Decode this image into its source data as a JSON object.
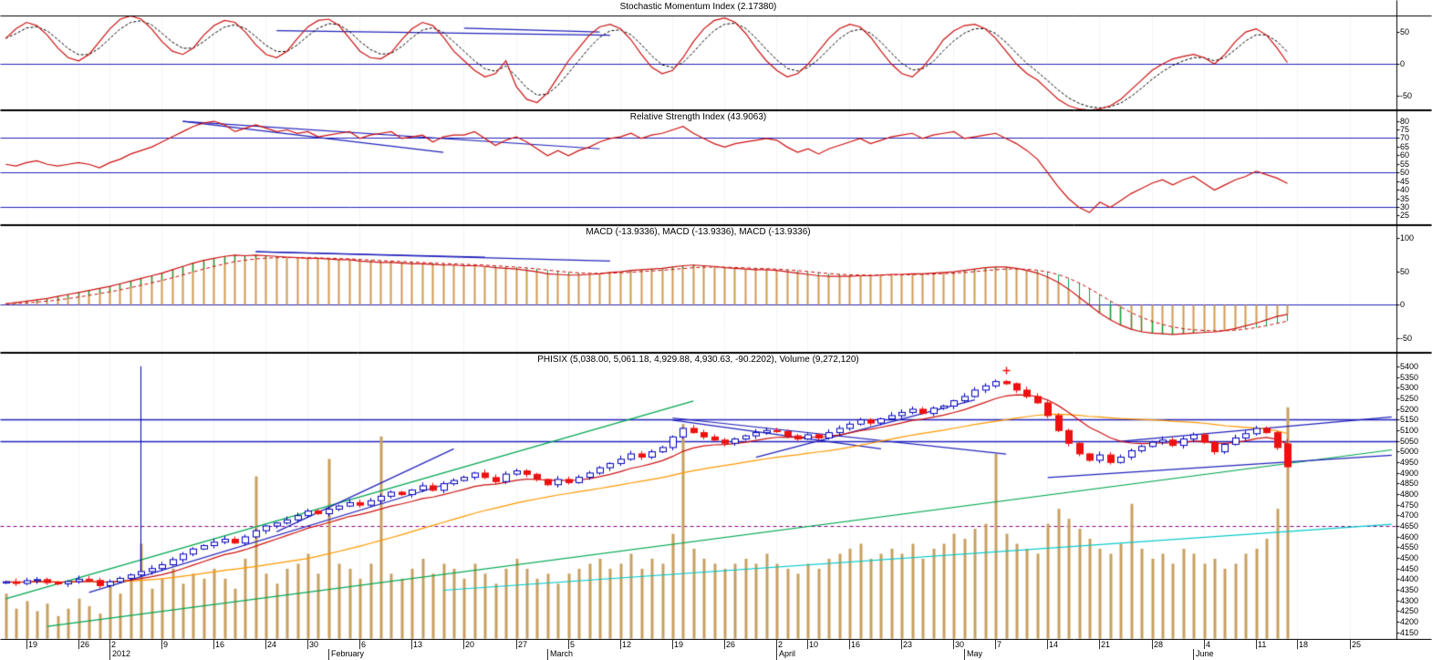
{
  "panels": {
    "smi": {
      "title": "Stochastic Momentum Index (2.17380)"
    },
    "rsi": {
      "title": "Relative Strength Index (43.9063)"
    },
    "macd": {
      "title": "MACD (-13.9336), MACD (-13.9336), MACD (-13.9336)"
    },
    "price": {
      "title": "PHISIX (5,038.00, 5,061.18, 4,929.88, 4,930.63, -90.2202), Volume (9,272,120)"
    }
  },
  "chart_data": {
    "type": "candlestick-with-indicators",
    "slots": 134,
    "xticks": [
      [
        2,
        "19"
      ],
      [
        7,
        "26"
      ],
      [
        10,
        "2"
      ],
      [
        15,
        "9"
      ],
      [
        20,
        "16"
      ],
      [
        25,
        "24"
      ],
      [
        29,
        "30"
      ],
      [
        34,
        "6"
      ],
      [
        39,
        "13"
      ],
      [
        44,
        "20"
      ],
      [
        49,
        "27"
      ],
      [
        54,
        "5"
      ],
      [
        59,
        "12"
      ],
      [
        64,
        "19"
      ],
      [
        69,
        "26"
      ],
      [
        74,
        "2"
      ],
      [
        77,
        "10"
      ],
      [
        81,
        "16"
      ],
      [
        86,
        "23"
      ],
      [
        91,
        "30"
      ],
      [
        95,
        "7"
      ],
      [
        100,
        "14"
      ],
      [
        105,
        "21"
      ],
      [
        110,
        "28"
      ],
      [
        115,
        "4"
      ],
      [
        120,
        "11"
      ],
      [
        124,
        "18"
      ],
      [
        129,
        "25"
      ]
    ],
    "months": [
      [
        10,
        "2012"
      ],
      [
        31,
        "February"
      ],
      [
        52,
        "March"
      ],
      [
        74,
        "April"
      ],
      [
        92,
        "May"
      ],
      [
        114,
        "June"
      ]
    ],
    "colors": {
      "red": "#cc1111",
      "blue": "#2222bb",
      "green": "#00a651",
      "cyan": "#00c8c8",
      "orange": "#ff9900",
      "tan": "#cf9b52",
      "purple": "#880088",
      "volume": "#c8a060",
      "candleUp": "#0000bb",
      "candleDown": "#ee1111",
      "grid": "#dcdcdc",
      "black": "#000000"
    },
    "smi": {
      "ymax": 75,
      "ymin": -70,
      "yticks": [
        50,
        0,
        -50
      ],
      "hlines": [
        0
      ],
      "trendlines": [
        [
          26,
          52,
          58,
          45
        ],
        [
          44,
          56,
          57,
          50
        ]
      ],
      "values": [
        40,
        55,
        65,
        60,
        45,
        25,
        10,
        5,
        15,
        35,
        55,
        70,
        75,
        70,
        55,
        35,
        20,
        15,
        25,
        45,
        60,
        68,
        65,
        50,
        30,
        15,
        10,
        20,
        40,
        58,
        68,
        70,
        60,
        40,
        20,
        10,
        8,
        18,
        38,
        55,
        65,
        60,
        42,
        20,
        5,
        -10,
        -20,
        -15,
        5,
        -35,
        -55,
        -60,
        -45,
        -20,
        5,
        25,
        45,
        58,
        62,
        55,
        38,
        15,
        -5,
        -15,
        -10,
        10,
        35,
        55,
        68,
        72,
        65,
        48,
        25,
        5,
        -10,
        -20,
        -15,
        0,
        20,
        40,
        55,
        62,
        58,
        42,
        20,
        0,
        -15,
        -20,
        -5,
        15,
        38,
        52,
        60,
        62,
        55,
        40,
        20,
        0,
        -15,
        -25,
        -40,
        -55,
        -65,
        -70,
        -72,
        -70,
        -65,
        -55,
        -40,
        -25,
        -10,
        0,
        8,
        12,
        15,
        10,
        0,
        15,
        35,
        50,
        55,
        45,
        25,
        2.17
      ]
    },
    "rsi": {
      "ymax": 84,
      "ymin": 21.5,
      "yticks": [
        80,
        75,
        70,
        65,
        60,
        55,
        50,
        45,
        40,
        35,
        30,
        25
      ],
      "hlines": [
        70,
        50,
        30
      ],
      "trendlines": [
        [
          17,
          80,
          57,
          64
        ],
        [
          17,
          80,
          42,
          62
        ]
      ],
      "values": [
        55,
        54,
        56,
        57,
        55,
        54,
        55,
        56,
        55,
        53,
        56,
        58,
        61,
        63,
        65,
        68,
        71,
        74,
        77,
        79,
        80,
        78,
        74,
        76,
        78,
        76,
        74,
        75,
        73,
        74,
        71,
        72,
        73,
        74,
        70,
        72,
        73,
        74,
        70,
        71,
        72,
        68,
        71,
        72,
        72,
        74,
        70,
        66,
        69,
        71,
        68,
        64,
        60,
        63,
        60,
        63,
        65,
        68,
        70,
        71,
        73,
        70,
        72,
        73,
        75,
        77,
        73,
        70,
        67,
        65,
        67,
        68,
        69,
        70,
        69,
        65,
        62,
        64,
        61,
        64,
        66,
        68,
        70,
        67,
        69,
        71,
        72,
        73,
        70,
        72,
        73,
        74,
        70,
        71,
        72,
        73,
        70,
        67,
        63,
        58,
        50,
        42,
        35,
        30,
        27,
        33,
        30,
        34,
        38,
        41,
        44,
        46,
        43,
        46,
        48,
        44,
        40,
        43,
        46,
        48,
        51,
        49,
        47,
        43.9
      ]
    },
    "macd": {
      "ymax": 115,
      "ymin": -68,
      "yticks": [
        100,
        50,
        0,
        -50
      ],
      "hlines": [
        0
      ],
      "trendlines": [
        [
          24,
          80,
          58,
          66
        ],
        [
          24,
          80,
          46,
          72
        ]
      ],
      "values": [
        2,
        4,
        6,
        8,
        10,
        13,
        16,
        19,
        22,
        25,
        28,
        32,
        36,
        40,
        44,
        48,
        53,
        58,
        63,
        67,
        70,
        73,
        75,
        74,
        75,
        74,
        73,
        72,
        71,
        70,
        70,
        69,
        68,
        68,
        66,
        65,
        64,
        64,
        63,
        62,
        62,
        61,
        60,
        60,
        59,
        59,
        58,
        56,
        55,
        54,
        52,
        50,
        47,
        46,
        45,
        45,
        46,
        47,
        49,
        50,
        52,
        53,
        54,
        55,
        57,
        59,
        60,
        59,
        58,
        56,
        55,
        54,
        53,
        53,
        52,
        50,
        48,
        46,
        44,
        43,
        43,
        43,
        44,
        44,
        45,
        46,
        46,
        47,
        47,
        48,
        49,
        50,
        52,
        54,
        56,
        57,
        57,
        55,
        52,
        48,
        42,
        34,
        24,
        12,
        0,
        -12,
        -22,
        -30,
        -36,
        -40,
        -42,
        -43,
        -44,
        -43,
        -42,
        -41,
        -40,
        -38,
        -35,
        -31,
        -27,
        -22,
        -17,
        -13.9
      ]
    },
    "price": {
      "ymax": 5430,
      "ymin": 4140,
      "yticks": [
        5400,
        5350,
        5300,
        5250,
        5200,
        5150,
        5100,
        5050,
        5000,
        4950,
        4900,
        4850,
        4800,
        4750,
        4700,
        4650,
        4600,
        4550,
        4500,
        4450,
        4400,
        4350,
        4300,
        4250,
        4200,
        4150
      ],
      "hlines_blue": [
        5150,
        5050
      ],
      "hlines_purple": [
        4650
      ],
      "spike": {
        "slot": 13,
        "high": 5403
      },
      "last_candle": {
        "open": 5038.0,
        "high": 5061.18,
        "low": 4929.88,
        "close": 4930.63,
        "change": -90.2202
      },
      "markers": [
        {
          "slot": 96,
          "value": 5385,
          "type": "plus",
          "color": "#ee1111"
        }
      ],
      "trendlines": [
        [
          0,
          4310,
          66,
          5240,
          "green"
        ],
        [
          4,
          4180,
          133,
          5010,
          "green"
        ],
        [
          42,
          4350,
          133,
          4660,
          "cyan"
        ],
        [
          8,
          4340,
          43,
          4860,
          "blue"
        ],
        [
          26,
          4625,
          43,
          5015,
          "blue"
        ],
        [
          64,
          5160,
          96,
          4990,
          "blue"
        ],
        [
          64,
          5150,
          84,
          5015,
          "blue"
        ],
        [
          72,
          4975,
          93,
          5245,
          "blue"
        ],
        [
          100,
          4880,
          133,
          4985,
          "blue"
        ],
        [
          107,
          5050,
          133,
          5165,
          "blue"
        ]
      ],
      "close": [
        4390,
        4382,
        4395,
        4400,
        4386,
        4380,
        4391,
        4402,
        4396,
        4372,
        4390,
        4406,
        4422,
        4438,
        4452,
        4470,
        4494,
        4520,
        4544,
        4560,
        4576,
        4590,
        4572,
        4601,
        4630,
        4652,
        4666,
        4681,
        4701,
        4722,
        4710,
        4731,
        4746,
        4762,
        4750,
        4771,
        4792,
        4811,
        4800,
        4821,
        4841,
        4820,
        4851,
        4866,
        4881,
        4901,
        4880,
        4861,
        4896,
        4911,
        4895,
        4871,
        4846,
        4871,
        4856,
        4881,
        4901,
        4926,
        4946,
        4966,
        4991,
        4976,
        5001,
        5021,
        5071,
        5111,
        5091,
        5071,
        5056,
        5041,
        5061,
        5076,
        5091,
        5101,
        5096,
        5076,
        5061,
        5081,
        5066,
        5091,
        5111,
        5131,
        5151,
        5136,
        5156,
        5171,
        5186,
        5201,
        5181,
        5206,
        5216,
        5241,
        5261,
        5291,
        5311,
        5331,
        5321,
        5291,
        5261,
        5231,
        5171,
        5101,
        5041,
        4991,
        4961,
        4986,
        4951,
        4976,
        5006,
        5026,
        5046,
        5056,
        5031,
        5061,
        5081,
        5046,
        5001,
        5036,
        5066,
        5086,
        5111,
        5091,
        5020.85,
        4930.63
      ],
      "volume": [
        1.8,
        1.2,
        1.5,
        1.1,
        1.4,
        0.9,
        1.2,
        1.6,
        1.3,
        1.0,
        2.2,
        1.8,
        2.5,
        3.8,
        2.0,
        2.4,
        2.8,
        2.2,
        2.6,
        2.4,
        2.8,
        2.4,
        2.0,
        3.2,
        6.5,
        2.6,
        2.2,
        2.8,
        3.0,
        3.4,
        2.6,
        7.2,
        3.0,
        2.8,
        2.4,
        3.0,
        8.1,
        2.6,
        2.4,
        2.8,
        3.2,
        2.6,
        3.0,
        2.8,
        2.4,
        3.0,
        2.6,
        2.2,
        2.8,
        3.2,
        2.8,
        2.4,
        2.6,
        2.2,
        2.6,
        2.8,
        3.0,
        3.2,
        2.8,
        3.0,
        3.4,
        2.8,
        3.2,
        3.0,
        4.2,
        8.6,
        3.6,
        3.2,
        3.0,
        2.8,
        3.0,
        3.2,
        3.0,
        3.4,
        3.0,
        2.8,
        2.6,
        3.0,
        2.8,
        3.2,
        3.4,
        3.6,
        3.8,
        3.2,
        3.4,
        3.6,
        3.4,
        3.8,
        3.2,
        3.6,
        3.8,
        4.2,
        4.0,
        4.4,
        4.6,
        7.4,
        4.2,
        3.8,
        3.6,
        3.4,
        4.6,
        5.2,
        4.8,
        4.4,
        4.0,
        3.6,
        3.4,
        3.8,
        5.4,
        3.6,
        3.2,
        3.4,
        3.0,
        3.6,
        3.4,
        3.0,
        3.2,
        2.8,
        3.0,
        3.4,
        3.6,
        4.0,
        5.2,
        9.27
      ]
    }
  }
}
